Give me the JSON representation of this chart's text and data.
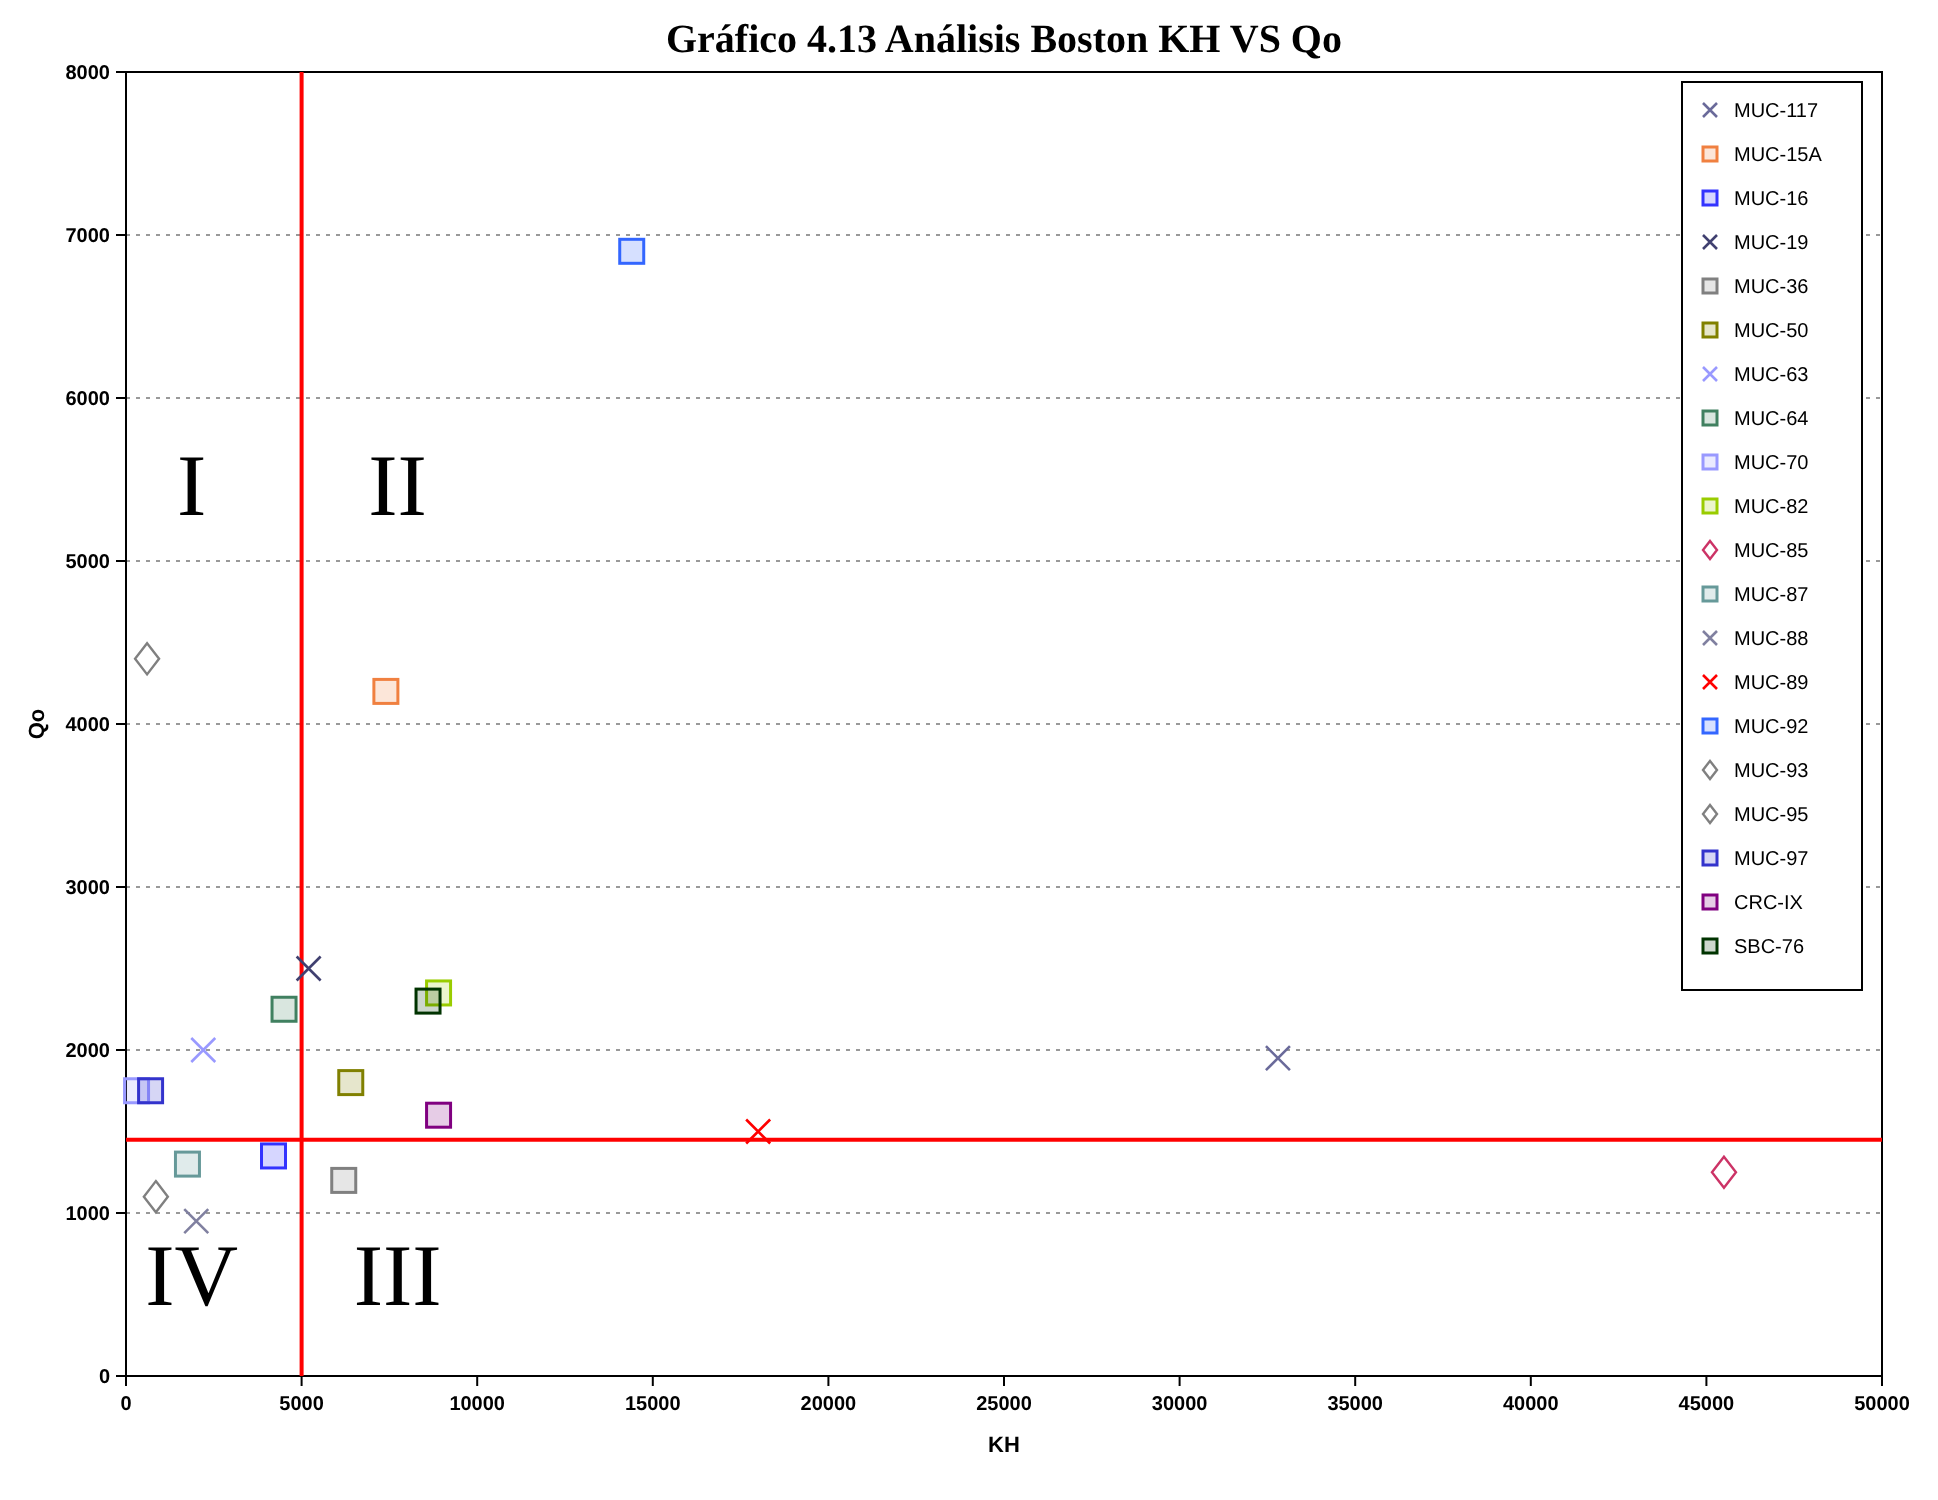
{
  "chart_data": {
    "type": "scatter",
    "title": "Gráfico 4.13 Análisis Boston KH VS Qo",
    "xlabel": "KH",
    "ylabel": "Qo",
    "xlim": [
      0,
      50000
    ],
    "xticks": [
      0,
      5000,
      10000,
      15000,
      20000,
      25000,
      30000,
      35000,
      40000,
      45000,
      50000
    ],
    "ylim": [
      0,
      8000
    ],
    "yticks": [
      0,
      1000,
      2000,
      3000,
      4000,
      5000,
      6000,
      7000,
      8000
    ],
    "grid": "y",
    "legend": "top right",
    "series": [
      {
        "name": "MUC-117",
        "color": "#6a6a9a",
        "marker": "cross",
        "x": [
          32800
        ],
        "values": [
          1950
        ]
      },
      {
        "name": "MUC-15A",
        "color": "#f08040",
        "marker": "square",
        "x": [
          7400
        ],
        "values": [
          4200
        ]
      },
      {
        "name": "MUC-16",
        "color": "#3333ff",
        "marker": "square",
        "x": [
          4200
        ],
        "values": [
          1350
        ]
      },
      {
        "name": "MUC-19",
        "color": "#404070",
        "marker": "cross",
        "x": [
          5200
        ],
        "values": [
          2500
        ]
      },
      {
        "name": "MUC-36",
        "color": "#808080",
        "marker": "square",
        "x": [
          6200
        ],
        "values": [
          1200
        ]
      },
      {
        "name": "MUC-50",
        "color": "#808000",
        "marker": "square",
        "x": [
          6400
        ],
        "values": [
          1800
        ]
      },
      {
        "name": "MUC-63",
        "color": "#9999ff",
        "marker": "cross",
        "x": [
          2200
        ],
        "values": [
          2000
        ]
      },
      {
        "name": "MUC-64",
        "color": "#408060",
        "marker": "square",
        "x": [
          4500
        ],
        "values": [
          2250
        ]
      },
      {
        "name": "MUC-70",
        "color": "#9999ff",
        "marker": "square",
        "x": [
          300
        ],
        "values": [
          1750
        ]
      },
      {
        "name": "MUC-82",
        "color": "#99cc00",
        "marker": "square",
        "x": [
          8900
        ],
        "values": [
          2350
        ]
      },
      {
        "name": "MUC-85",
        "color": "#cc3366",
        "marker": "diamond",
        "x": [
          45500
        ],
        "values": [
          1250
        ]
      },
      {
        "name": "MUC-87",
        "color": "#669999",
        "marker": "square",
        "x": [
          1750
        ],
        "values": [
          1300
        ]
      },
      {
        "name": "MUC-88",
        "color": "#8080a0",
        "marker": "cross",
        "x": [
          2000
        ],
        "values": [
          950
        ]
      },
      {
        "name": "MUC-89",
        "color": "#ff0000",
        "marker": "cross",
        "x": [
          18000
        ],
        "values": [
          1500
        ]
      },
      {
        "name": "MUC-92",
        "color": "#3366ff",
        "marker": "square",
        "x": [
          14400
        ],
        "values": [
          6900
        ]
      },
      {
        "name": "MUC-93",
        "color": "#808080",
        "marker": "diamond",
        "x": [
          600
        ],
        "values": [
          4400
        ]
      },
      {
        "name": "MUC-95",
        "color": "#808080",
        "marker": "diamond",
        "x": [
          850
        ],
        "values": [
          1100
        ]
      },
      {
        "name": "MUC-97",
        "color": "#3333cc",
        "marker": "square",
        "x": [
          700
        ],
        "values": [
          1750
        ]
      },
      {
        "name": "CRC-IX",
        "color": "#800080",
        "marker": "square",
        "x": [
          8900
        ],
        "values": [
          1600
        ]
      },
      {
        "name": "SBC-76",
        "color": "#003300",
        "marker": "square",
        "x": [
          8600
        ],
        "values": [
          2300
        ]
      }
    ],
    "ref_lines": [
      {
        "axis": "x",
        "value": 5000,
        "color": "#ff0000"
      },
      {
        "axis": "y",
        "value": 1450,
        "color": "#ff0000"
      }
    ],
    "annotations": [
      "I",
      "II",
      "III",
      "IV"
    ]
  }
}
